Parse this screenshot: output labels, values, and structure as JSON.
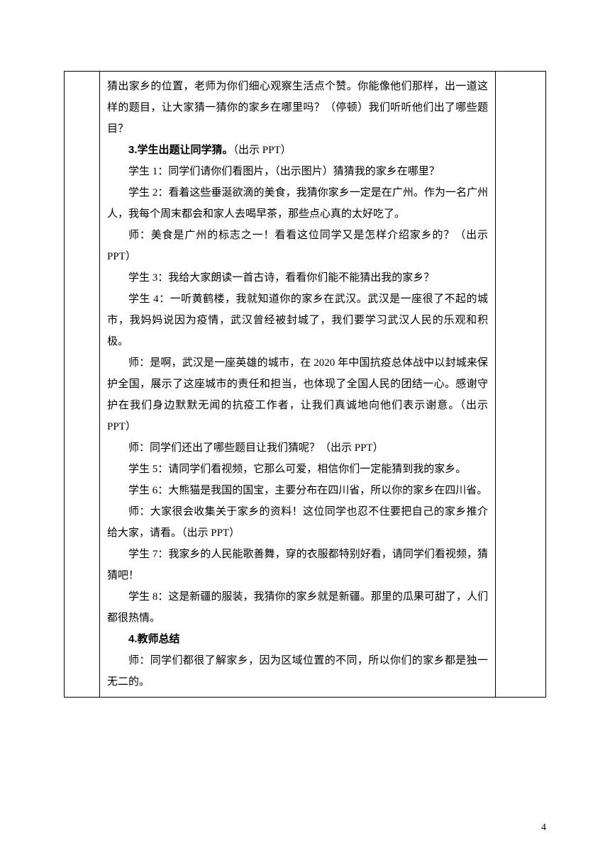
{
  "content": {
    "p1": "猜出家乡的位置，老师为你们细心观察生活点个赞。你能像他们那样，出一道这样的题目，让大家猜一猜你的家乡在哪里吗？（停顿）我们听听他们出了哪些题目？",
    "h1_bold": "3.学生出题让同学猜。",
    "h1_rest": "（出示 PPT）",
    "p2": "学生 1：同学们请你们看图片，（出示图片）猜猜我的家乡在哪里？",
    "p3": "学生 2：看着这些垂涎欲滴的美食，我猜你家乡一定是在广州。作为一名广州人，我每个周末都会和家人去喝早茶，那些点心真的太好吃了。",
    "p4": "师：美食是广州的标志之一！看看这位同学又是怎样介绍家乡的？（出示 PPT）",
    "p5": "学生 3：我给大家朗读一首古诗，看看你们能不能猜出我的家乡？",
    "p6": "学生 4：一听黄鹤楼，我就知道你的家乡在武汉。武汉是一座很了不起的城市，我妈妈说因为疫情，武汉曾经被封城了，我们要学习武汉人民的乐观和积极。",
    "p7": "师：是啊，武汉是一座英雄的城市，在 2020 年中国抗疫总体战中以封城来保护全国，展示了这座城市的责任和担当，也体现了全国人民的团结一心。感谢守护在我们身边默默无闻的抗疫工作者，让我们真诚地向他们表示谢意。（出示 PPT）",
    "p8": "师：同学们还出了哪些题目让我们猜呢？（出示 PPT）",
    "p9": "学生 5：请同学们看视频，它那么可爱，相信你们一定能猜到我的家乡。",
    "p10": "学生 6：大熊猫是我国的国宝，主要分布在四川省，所以你的家乡在四川省。",
    "p11": "师：大家很会收集关于家乡的资料！这位同学也忍不住要把自己的家乡推介给大家，请看。（出示 PPT）",
    "p12": "学生 7：我家乡的人民能歌善舞，穿的衣服都特别好看，请同学们看视频，猜猜吧！",
    "p13": "学生 8：这是新疆的服装，我猜你的家乡就是新疆。那里的瓜果可甜了，人们都很热情。",
    "h2_bold": "4.教师总结",
    "p14": "师：同学们都很了解家乡，因为区域位置的不同，所以你们的家乡都是独一无二的。"
  },
  "page_number": "4"
}
